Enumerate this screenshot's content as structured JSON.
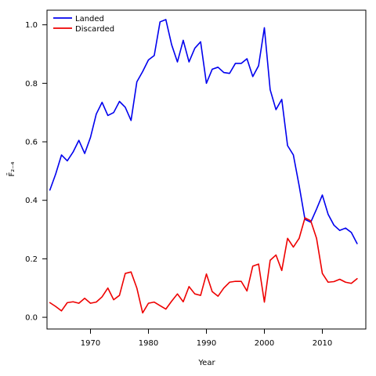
{
  "chart_data": {
    "type": "line",
    "xlabel": "Year",
    "ylabel": "F̄₂₋₄",
    "xlim": [
      1962.5,
      2017.5
    ],
    "ylim": [
      -0.04,
      1.05
    ],
    "xticks": [
      1970,
      1980,
      1990,
      2000,
      2010
    ],
    "xtick_labels": [
      "1970",
      "1980",
      "1990",
      "2000",
      "2010"
    ],
    "yticks": [
      0.0,
      0.2,
      0.4,
      0.6,
      0.8,
      1.0
    ],
    "ytick_labels": [
      "0.0",
      "0.2",
      "0.4",
      "0.6",
      "0.8",
      "1.0"
    ],
    "grid": false,
    "legend_position": "top-left",
    "x": [
      1963,
      1964,
      1965,
      1966,
      1967,
      1968,
      1969,
      1970,
      1971,
      1972,
      1973,
      1974,
      1975,
      1976,
      1977,
      1978,
      1979,
      1980,
      1981,
      1982,
      1983,
      1984,
      1985,
      1986,
      1987,
      1988,
      1989,
      1990,
      1991,
      1992,
      1993,
      1994,
      1995,
      1996,
      1997,
      1998,
      1999,
      2000,
      2001,
      2002,
      2003,
      2004,
      2005,
      2006,
      2007,
      2008,
      2009,
      2010,
      2011,
      2012,
      2013,
      2014,
      2015,
      2016
    ],
    "series": [
      {
        "name": "Landed",
        "color": "#0000ee",
        "values": [
          0.435,
          0.49,
          0.555,
          0.535,
          0.565,
          0.605,
          0.56,
          0.615,
          0.695,
          0.735,
          0.69,
          0.7,
          0.738,
          0.718,
          0.673,
          0.805,
          0.84,
          0.88,
          0.895,
          1.01,
          1.018,
          0.932,
          0.873,
          0.947,
          0.873,
          0.92,
          0.942,
          0.8,
          0.848,
          0.855,
          0.837,
          0.834,
          0.868,
          0.868,
          0.884,
          0.823,
          0.86,
          0.99,
          0.778,
          0.71,
          0.745,
          0.587,
          0.555,
          0.45,
          0.335,
          0.325,
          0.37,
          0.418,
          0.352,
          0.315,
          0.297,
          0.305,
          0.29,
          0.252
        ]
      },
      {
        "name": "Discarded",
        "color": "#ee0000",
        "values": [
          0.05,
          0.037,
          0.022,
          0.05,
          0.053,
          0.048,
          0.065,
          0.048,
          0.052,
          0.07,
          0.1,
          0.06,
          0.075,
          0.15,
          0.155,
          0.1,
          0.015,
          0.048,
          0.052,
          0.04,
          0.028,
          0.055,
          0.08,
          0.053,
          0.105,
          0.08,
          0.075,
          0.148,
          0.088,
          0.072,
          0.1,
          0.12,
          0.123,
          0.123,
          0.09,
          0.175,
          0.182,
          0.052,
          0.195,
          0.213,
          0.16,
          0.27,
          0.24,
          0.27,
          0.34,
          0.33,
          0.27,
          0.15,
          0.12,
          0.122,
          0.13,
          0.12,
          0.116,
          0.132
        ]
      }
    ]
  }
}
